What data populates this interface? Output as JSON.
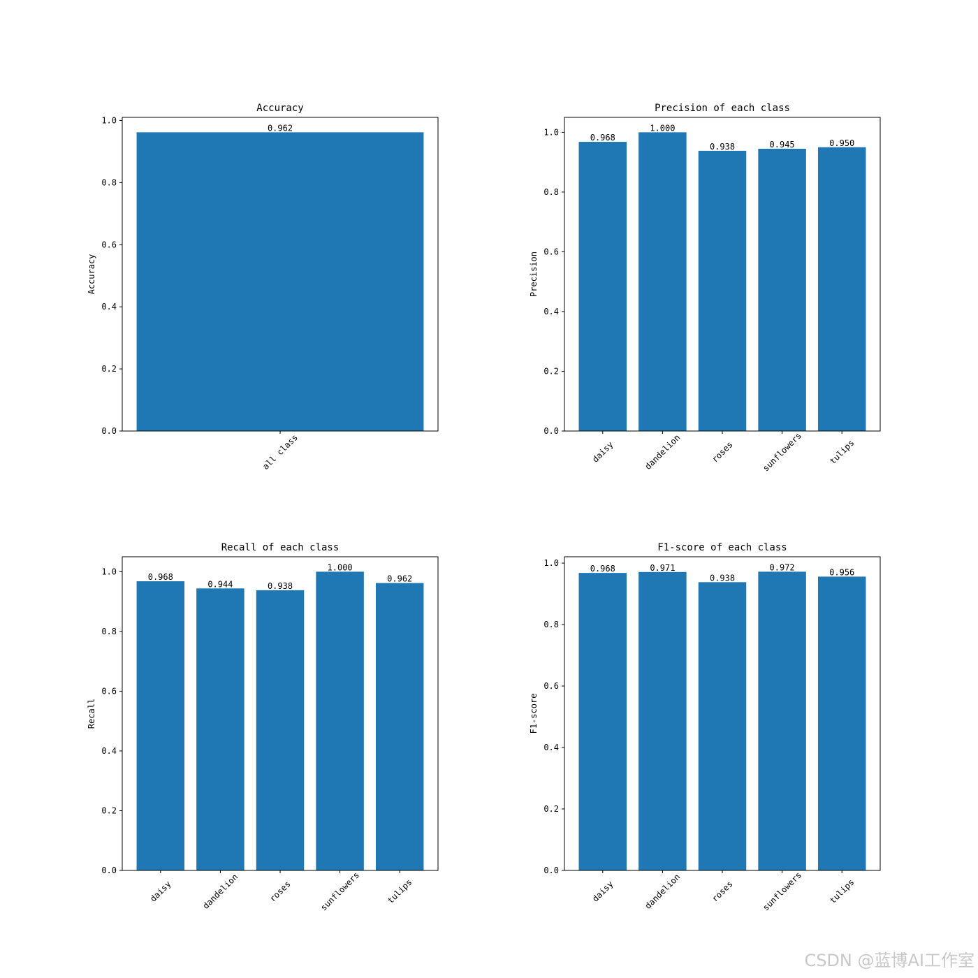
{
  "chart_data": [
    {
      "type": "bar",
      "title": "Accuracy",
      "y_label": "Accuracy",
      "categories": [
        "all class"
      ],
      "values": [
        0.962
      ],
      "value_labels": [
        "0.962"
      ],
      "color": "#1f77b4",
      "ylim": [
        0,
        1.0101
      ],
      "yticks": [
        {
          "value": 0,
          "label": "0.0"
        },
        0.2,
        0.4,
        0.6,
        0.8,
        {
          "value": 1,
          "label": "1.0"
        }
      ]
    },
    {
      "type": "bar",
      "title": "Precision of each class",
      "y_label": "Precision",
      "categories": [
        "daisy",
        "dandelion",
        "roses",
        "sunflowers",
        "tulips"
      ],
      "values": [
        0.968,
        1.0,
        0.938,
        0.945,
        0.95
      ],
      "value_labels": [
        "0.968",
        "1.000",
        "0.938",
        "0.945",
        "0.950"
      ],
      "color": "#1f77b4",
      "ylim": [
        0,
        1.05
      ],
      "yticks": [
        {
          "value": 0,
          "label": "0.0"
        },
        0.2,
        0.4,
        0.6,
        0.8,
        {
          "value": 1,
          "label": "1.0"
        }
      ]
    },
    {
      "type": "bar",
      "title": "Recall of each class",
      "y_label": "Recall",
      "categories": [
        "daisy",
        "dandelion",
        "roses",
        "sunflowers",
        "tulips"
      ],
      "values": [
        0.968,
        0.944,
        0.938,
        1.0,
        0.962
      ],
      "value_labels": [
        "0.968",
        "0.944",
        "0.938",
        "1.000",
        "0.962"
      ],
      "color": "#1f77b4",
      "ylim": [
        0,
        1.05
      ],
      "yticks": [
        {
          "value": 0,
          "label": "0.0"
        },
        0.2,
        0.4,
        0.6,
        0.8,
        {
          "value": 1,
          "label": "1.0"
        }
      ]
    },
    {
      "type": "bar",
      "title": "F1-score of each class",
      "y_label": "F1-score",
      "categories": [
        "daisy",
        "dandelion",
        "roses",
        "sunflowers",
        "tulips"
      ],
      "values": [
        0.968,
        0.971,
        0.938,
        0.972,
        0.956
      ],
      "value_labels": [
        "0.968",
        "0.971",
        "0.938",
        "0.972",
        "0.956"
      ],
      "color": "#1f77b4",
      "ylim": [
        0,
        1.0206
      ],
      "yticks": [
        {
          "value": 0,
          "label": "0.0"
        },
        0.2,
        0.4,
        0.6,
        0.8,
        {
          "value": 1,
          "label": "1.0"
        }
      ]
    }
  ],
  "watermark": "CSDN @蓝博AI工作室"
}
